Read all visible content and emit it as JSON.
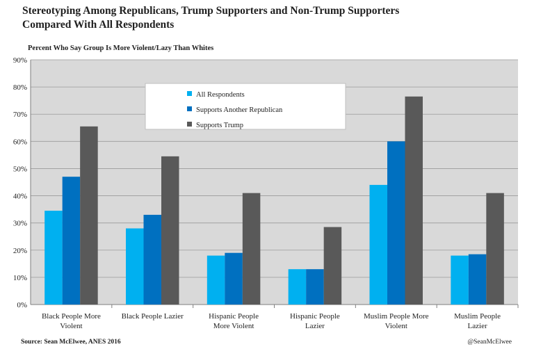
{
  "title_line1": "Stereotyping Among Republicans, Trump Supporters and Non-Trump Supporters",
  "title_line2": "Compared With All Respondents",
  "source": "Source: Sean McElwee, ANES 2016",
  "handle": "@SeanMcElwee",
  "colors": {
    "plot_bg": "#d9d9d9",
    "grid": "#9a9a9a",
    "series": [
      "#00b0f0",
      "#0070c0",
      "#595959"
    ]
  },
  "chart_data": {
    "type": "bar",
    "title": "Stereotyping Among Republicans, Trump Supporters and Non-Trump Supporters Compared With All Respondents",
    "subtitle": "Percent Who Say Group Is More Violent/Lazy Than Whites",
    "xlabel": "",
    "ylabel": "",
    "ylim": [
      0,
      90
    ],
    "yticks": [
      0,
      10,
      20,
      30,
      40,
      50,
      60,
      70,
      80,
      90
    ],
    "ytick_labels": [
      "0%",
      "10%",
      "20%",
      "30%",
      "40%",
      "50%",
      "60%",
      "70%",
      "80%",
      "90%"
    ],
    "grid": true,
    "legend_position": "upper-left-center",
    "categories": [
      [
        "Black People More",
        "Violent"
      ],
      [
        "Black People Lazier"
      ],
      [
        "Hispanic People",
        "More Violent"
      ],
      [
        "Hispanic People",
        "Lazier"
      ],
      [
        "Muslim People More",
        "Violent"
      ],
      [
        "Muslim People",
        "Lazier"
      ]
    ],
    "series": [
      {
        "name": "All Respondents",
        "values": [
          34.5,
          28,
          18,
          13,
          44,
          18
        ]
      },
      {
        "name": "Supports Another Republican",
        "values": [
          47,
          33,
          19,
          13,
          60,
          18.5
        ]
      },
      {
        "name": "Supports Trump",
        "values": [
          65.5,
          54.5,
          41,
          28.5,
          76.5,
          41
        ]
      }
    ]
  }
}
